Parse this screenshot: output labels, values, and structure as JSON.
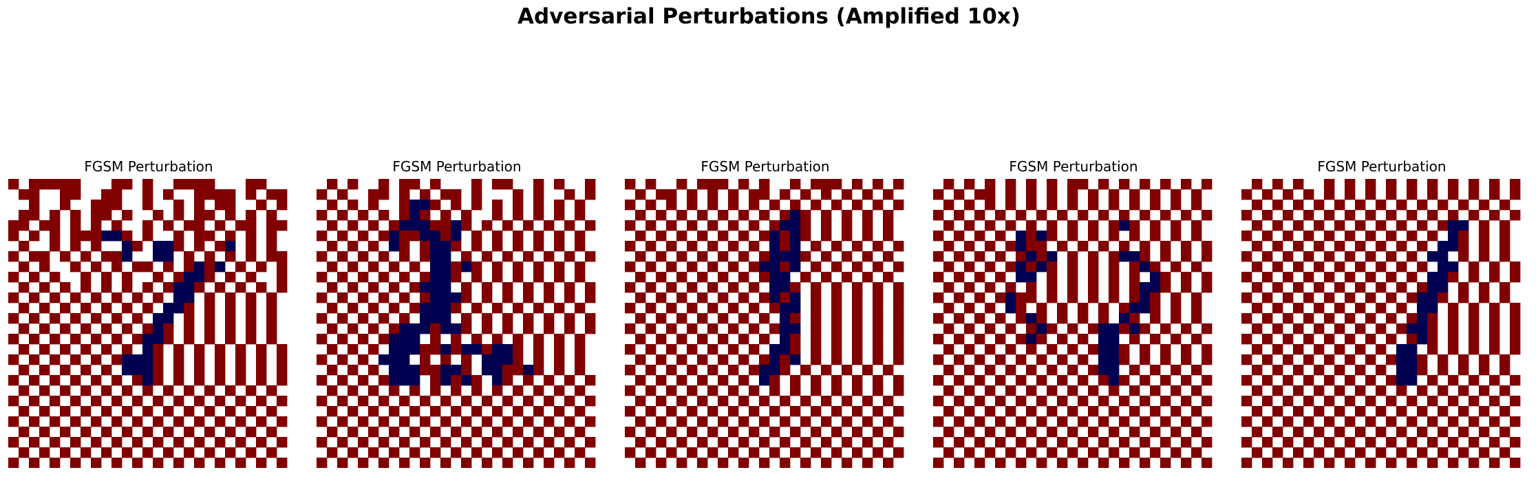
{
  "title": "Adversarial Perturbations (Amplified 10x)",
  "chart_data": [
    {
      "type": "heatmap",
      "title": "FGSM Perturbation",
      "rows": [
        "+0+++++000++0+00++++000++00",
        "0++00++00++00+0+00++++0+0++",
        "00+00+00+++00+00+0+0++00+0+",
        "0++0+0+0++0+00+0+0++0+0+0+0",
        "++0++0+0+0+00+0+0++0+0++0++",
        "+0+0+0+++--+0+00+0++0+0+0+0",
        "0+00+0+0+00-+0--+0+0+-0+0+0",
        "+0++0+0+0++-00--0+0+0+0+0++",
        "0+0+00+0+0+0++0+0+-+-0+0+0+",
        "+0+0+00+0+0+00+0+--+0+0+00+",
        "0+0+0+0+0+0+0+0+--+0+0+0+0+",
        "+0+0+0+0+0+0+0+0--0+0+0+0+0",
        "0+0+0+0+0+0+0+0--+0+0+0+0+0",
        "+0+0+0+0+0+0+0--0+0+0+0+0+0",
        "0+0+0+0+0+0+0+-+0+0+0+0+0+0",
        "+0+0+0+0+0+0+--+0+0+0+0+0+0",
        "0+0+0+0+0+0+0-+0+0+0+0+0+0+",
        "+0+0+0+0+0+---+0+0+0+0+0+0+",
        "0+0+0+0+0+0---+0+0+0+0+0+0+",
        "+0+0+0+0+0+0+-+0+0+0+0+0+0+",
        "0+0+0+0+0+0+0+0+0+0+0+0+0+0",
        "+0+0+0+0+0+0+0+0+0+0+0+0+0+",
        "0+0+0+0+0+0+0+0+0+0+0+0+0+0",
        "+0+0+0+0+0+0+0+0+0+0+0+0+0+",
        "0+0+0+0+0+0+0+0+0+0+0+0+0+0",
        "+0+0+0+0+0+0+0+0+0+0+0+0+0+",
        "0+0+0+0+0+0+0+0+0+0+0+0+0+0",
        "+0+0+0+0+0+0+0+0+0+0+0+0+0+"
      ]
    },
    {
      "type": "heatmap",
      "title": "FGSM Perturbation",
      "rows": [
        "0+0+00+0++0+000+0++00+0+00+",
        "+0+00++0+0+0++0+000+0+00+0+",
        "0+0+0+00+--+0+0+0+0+0+0+0+0",
        "+0+0+0+0+-+0+0+00+0+0+0+0+0",
        "0+0+0+0+---++-+0+0+0+0+0+0+",
        "+0+0+0+-++--+-0+0+0+0+0+0+0",
        "0+0+0+0-+0+--+0+0+0+0+0+0+0",
        "+0+0+0+0+0+--0+0+0+0+0+0+0+",
        "0+0+0+0+0+0--+-+0+0+0+0+0+0",
        "+0+0+0+0+0+--+0+0+0+0+0+0+0",
        "0+0+0+0+0+---0+0+0+0+0+0+0+",
        "+0+0+0+0+0+---+0+0+0+0+0+0+",
        "0+0+0+0+0+---+0+0+0+0+0+0+0",
        "+0+0+0+0+0---0+0+0+0+0+0+0+",
        "0+0+0+0+---+--+0+0+0+0+0+0+",
        "+0+0+0+---0+0+0+0+0+0+0+0+0",
        "0+0+0+0---++-+--+--+0+0+0+0",
        "+0+0+0---0+0+0+0---+0+0+0+0",
        "0+0+0+0---++--+0--++-+0+0+0",
        "+0+0+0+---0+-+-+0-+0+0+0+0+",
        "0+0+0+0+0+0+0+0+0+0+0+0+0+0",
        "+0+0+0+0+0+0+0+0+0+0+0+0+0+",
        "0+0+0+0+0+0+0+0+0+0+0+0+0+0",
        "+0+0+0+0+0+0+0+0+0+0+0+0+0+",
        "0+0+0+0+0+0+0+0+0+0+0+0+0+0",
        "+0+0+0+0+0+0+0+0+0+0+0+0+0+",
        "0+0+0+0+0+0+0+0+0+0+0+0+0+0",
        "+0+0+0+0+0+0+0+0+0+0+0+0+0+"
      ]
    },
    {
      "type": "heatmap",
      "title": "FGSM Perturbation",
      "rows": [
        "+0+00+0+++0+0+00+0+++0+0+0+",
        "0+0++0+0+0+0++0+0+0+0+0+0+0",
        "+0+0+0+0+0+0+0+0+0+0+0+0+0+",
        "0+0+0+0+0+0+0+0+-+0+0+0+0+0",
        "+0+0+0+0+0+0+0+--+0+0+0+0+0",
        "0+0+0+0+0+0+0+-+-+0+0+0+0+0",
        "+0+0+0+0+0+0+0-+-0+0+0+0+0+",
        "0+0+0+0+0+0+0+---+0+0+0+0+0",
        "+0+0+0+0+0+0+--+-0+0+0+0+0+",
        "0+0+0+0+0+0+0+--0+0+0+0+0+0",
        "+0+0+0+0+0+0+0--+0+0+0+0+0+",
        "0+0+0+0+0+0+0+-+-0+0+0+0+0+",
        "+0+0+0+0+0+0+0+--0+0+0+0+0+",
        "0+0+0+0+0+0+0+0-+0+0+0+0+0+",
        "+0+0+0+0+0+0+0+--0+0+0+0+0+",
        "0+0+0+0+0+0+0+0-+0+0+0+0+0+",
        "+0+0+0+0+0+0+0--+0+0+0+0+0+",
        "0+0+0+0+0+0+0+-+-0+0+0+0+0+",
        "+0+0+0+0+0+0+--+0+0+0+0+0+0",
        "0+0+0+0+0+0+0-+0+0+0+0+0+0+",
        "+0+0+0+0+0+0+0+0+0+0+0+0+0+",
        "0+0+0+0+0+0+0+0+0+0+0+0+0+0",
        "+0+0+0+0+0+0+0+0+0+0+0+0+0+",
        "0+0+0+0+0+0+0+0+0+0+0+0+0+0",
        "+0+0+0+0+0+0+0+0+0+0+0+0+0+",
        "0+0+0+0+0+0+0+0+0+0+0+0+0+0",
        "+0+0+0+0+0+0+0+0+0+0+0+0+0+",
        "0+0+0+0+0+0+0+0+0+0+0+0+0+0"
      ]
    },
    {
      "type": "heatmap",
      "title": "FGSM Perturbation",
      "rows": [
        "0+0+0+0+0+0+0++0+0+0+0+0+0+",
        "+0+0++0+0+0+0+0+0+0+0+0+0+0",
        "0+0+0+0+0+0+0+0+0+0+0+0+0+0",
        "+0+0+0+0+0+0+0+0+0+0+0+0+0+",
        "0+0+0+0+0+0+0+0+0+-+0+0+0+0",
        "+0+0+0+0-+-+0+0+0+0+0+0+0+0",
        "0+0+0+0+-++0+0+0+0+0+0+0+0+",
        "+0+0+0+0+-+-0+0+0+--+0+0+0+",
        "0+0+0+0+-+-+0+0+0+0+-+0+0+0",
        "+0+0+0+0--0+0+0+0+0+0-+0+0+",
        "0+0+0+0+0+0+0+0+0+0+--+0+0+",
        "+0+0+0+-++0+0+0+0+0+-+0+0+0",
        "0+0+0+0-+0+0+0+0+0+--+0+0+0",
        "+0+0+0+0+-+0+0+0+0-+0+0+0+0",
        "0+0+0+0+0+-+0+0+--+-+0+0+0+",
        "+0+0+0+0+-+0+0+0--0+0+0+0+0",
        "0+0+0+0+0+0+0+0+--+0+0+0+0+",
        "+0+0+0+0+0+0+0+0--+0+0+0+0+",
        "0+0+0+0+0+0+0+0+--0+0+0+0+0",
        "+0+0+0+0+0+0+0+0+-+0+0+0+0+",
        "0+0+0+0+0+0+0+0+0+0+0+0+0+0",
        "+0+0+0+0+0+0+0+0+0+0+0+0+0+",
        "0+0+0+0+0+0+0+0+0+0+0+0+0+0",
        "+0+0+0+0+0+0+0+0+0+0+0+0+0+",
        "0+0+0+0+0+0+0+0+0+0+0+0+0+0",
        "+0+0+0+0+0+0+0+0+0+0+0+0+0+",
        "0+0+0+0+0+0+0+0+0+0+0+0+0+0",
        "+0+0+0+0+0+0+0+0+0+0+0+0+0+"
      ]
    },
    {
      "type": "heatmap",
      "title": "FGSM Perturbation",
      "rows": [
        "0+0+0+00+0+0+0+0+0+0+0+0+0+",
        "+0+0+0+0+0+0+0+0+0+0+0+0+0+",
        "0+0+0+0+0+0+0+0+0+0+0+0+0+0",
        "+0+0+0+0+0+0+0+0+0+0+0+0+0+",
        "0+0+0+0+0+0+0+0+0+0+--0+0+0",
        "+0+0+0+0+0+0+0+0+0+0-+0+0+0",
        "0+0+0+0+0+0+0+0+0+0--+0+0+0",
        "+0+0+0+0+0+0+0+0+0--0+0+0+0",
        "0+0+0+0+0+0+0+0+0+0--0+0+0+",
        "+0+0+0+0+0+0+0+0+0--+0+0+0+",
        "0+0+0+0+0+0+0+0+0+--0+0+0+0",
        "+0+0+0+0+0+0+0+0+--+0+0+0+0",
        "0+0+0+0+0+0+0+0+0--0+0+0+0+",
        "+0+0+0+0+0+0+0+0+-+0+0+0+0+",
        "0+0+0+0+0+0+0+0+--+0+0+0+0+",
        "+0+0+0+0+0+0+0+0+-+0+0+0+0+",
        "0+0+0+0+0+0+0+0--0+0+0+0+0+",
        "+0+0+0+0+0+0+0+--+0+0+0+0+0",
        "0+0+0+0+0+0+0+0--+0+0+0+0+0",
        "+0+0+0+0+0+0+0+--0+0+0+0+0+",
        "0+0+0+0+0+0+0+0+0+0+0+0+0+0",
        "+0+0+0+0+0+0+0+0+0+0+0+0+0+",
        "0+0+0+0+0+0+0+0+0+0+0+0+0+0",
        "+0+0+0+0+0+0+0+0+0+0+0+0+0+",
        "0+0+0+0+0+0+0+0+0+0+0+0+0+0",
        "+0+0+0+0+0+0+0+0+0+0+0+0+0+",
        "0+0+0+0+0+0+0+0+0+0+0+0+0+0",
        "+0+0+0+0+0+0+0+0+0+0+0+0+0+"
      ]
    }
  ],
  "colors": {
    "positive": "#800000",
    "zero": "#ffffff",
    "negative": "#000050"
  }
}
